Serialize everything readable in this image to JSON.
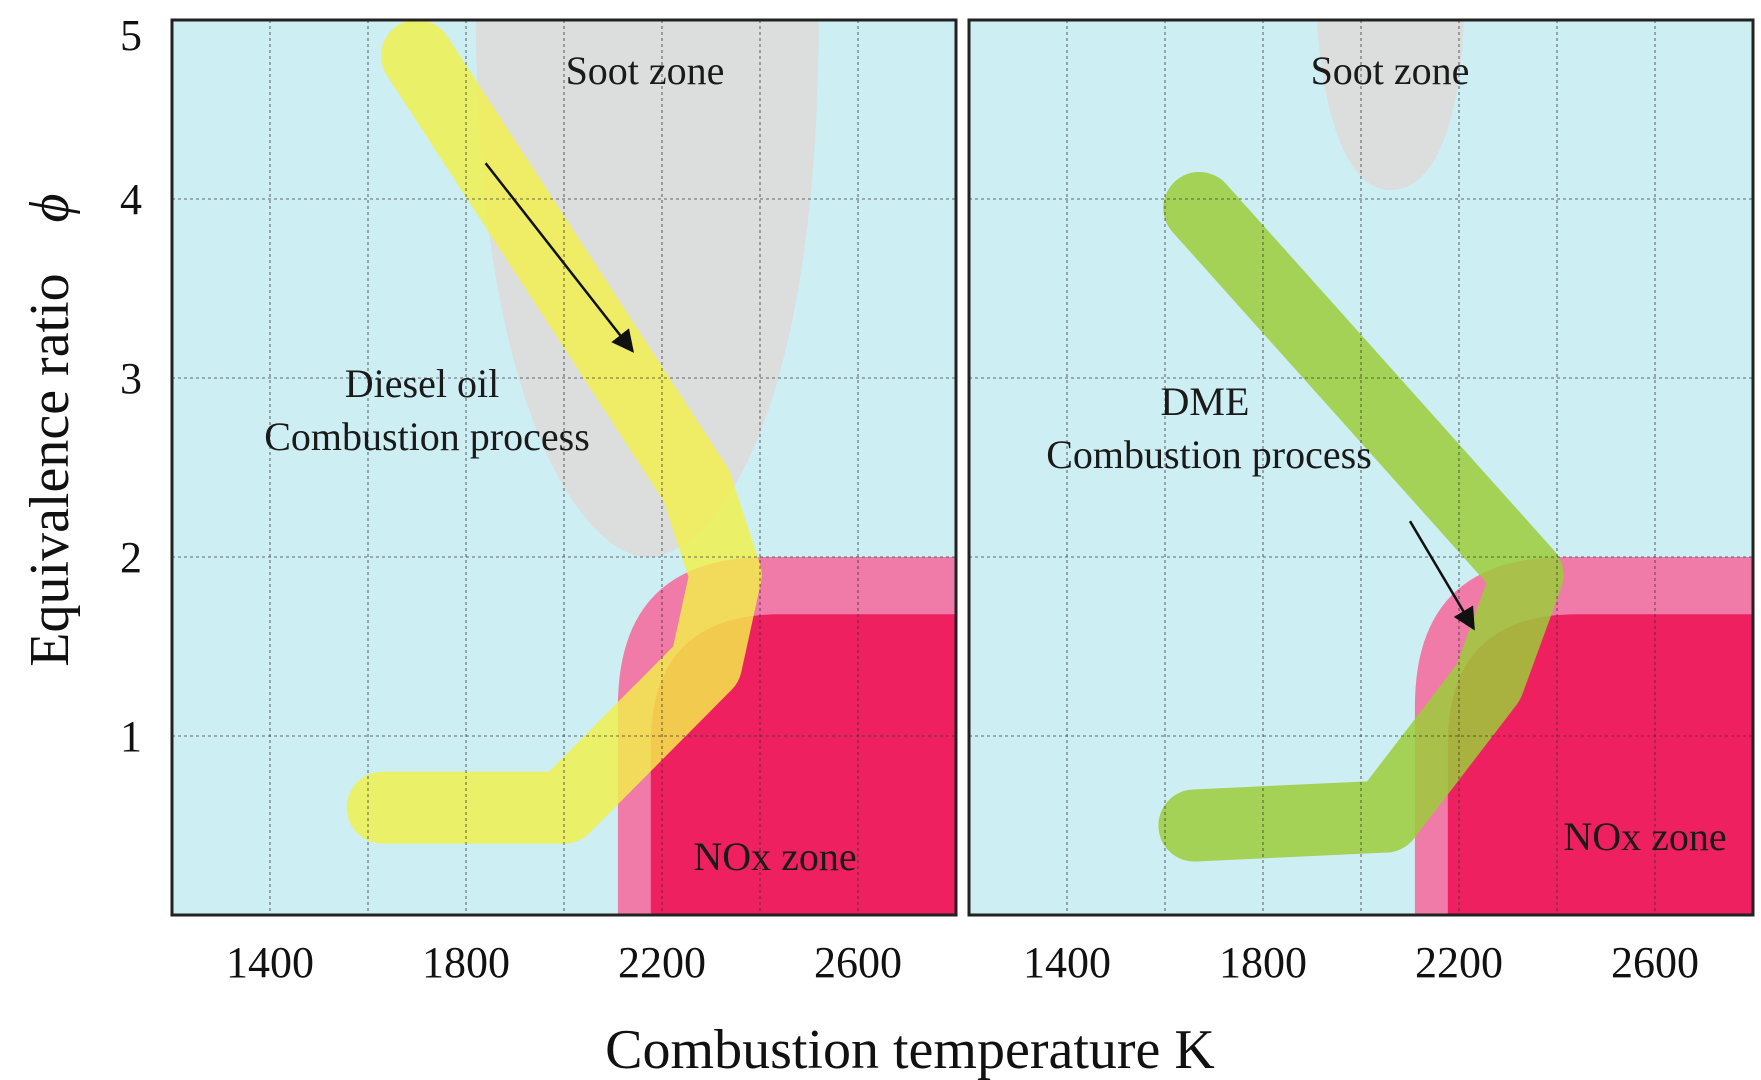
{
  "chart_data": {
    "type": "area",
    "xlabel": "Combustion temperature   K",
    "ylabel": "Equivalence ratio",
    "ylabel_symbol": "ϕ",
    "xlim": [
      1200,
      2800
    ],
    "ylim": [
      0,
      5
    ],
    "x_ticks": [
      1400,
      1800,
      2200,
      2600
    ],
    "y_ticks": [
      1,
      2,
      3,
      4,
      5
    ],
    "grid": true,
    "colors": {
      "background": "#cdeef3",
      "soot": "#dcdcdc",
      "nox_outer": "#f07aa8",
      "nox_inner": "#ef2060",
      "diesel_path": "#f2f04a",
      "dme_path": "#9ccc3a"
    },
    "panels": [
      {
        "soot_label": "Soot zone",
        "nox_label": "NOx zone",
        "process_label": [
          "Diesel oil",
          "Combustion process"
        ],
        "soot_zone": {
          "x_from": 1820,
          "x_to": 2520,
          "phi_bottom": 2.0
        },
        "nox_zone": {
          "t_min": 2110,
          "phi_max": 2.0
        },
        "process_path": [
          [
            1700,
            4.8
          ],
          [
            2270,
            2.4
          ],
          [
            2330,
            1.9
          ],
          [
            2290,
            1.4
          ],
          [
            2000,
            0.6
          ],
          [
            1630,
            0.6
          ]
        ],
        "arrow": [
          [
            1840,
            4.2
          ],
          [
            2140,
            3.15
          ]
        ]
      },
      {
        "soot_label": "Soot zone",
        "nox_label": "NOx zone",
        "process_label": [
          "DME",
          "Combustion process"
        ],
        "soot_zone": {
          "x_from": 1910,
          "x_to": 2210,
          "phi_bottom": 4.05
        },
        "nox_zone": {
          "t_min": 2110,
          "phi_max": 2.0
        },
        "process_path": [
          [
            1670,
            3.95
          ],
          [
            2340,
            1.9
          ],
          [
            2260,
            1.3
          ],
          [
            2050,
            0.55
          ],
          [
            1660,
            0.5
          ]
        ],
        "arrow": [
          [
            2100,
            2.2
          ],
          [
            2230,
            1.6
          ]
        ]
      }
    ]
  }
}
